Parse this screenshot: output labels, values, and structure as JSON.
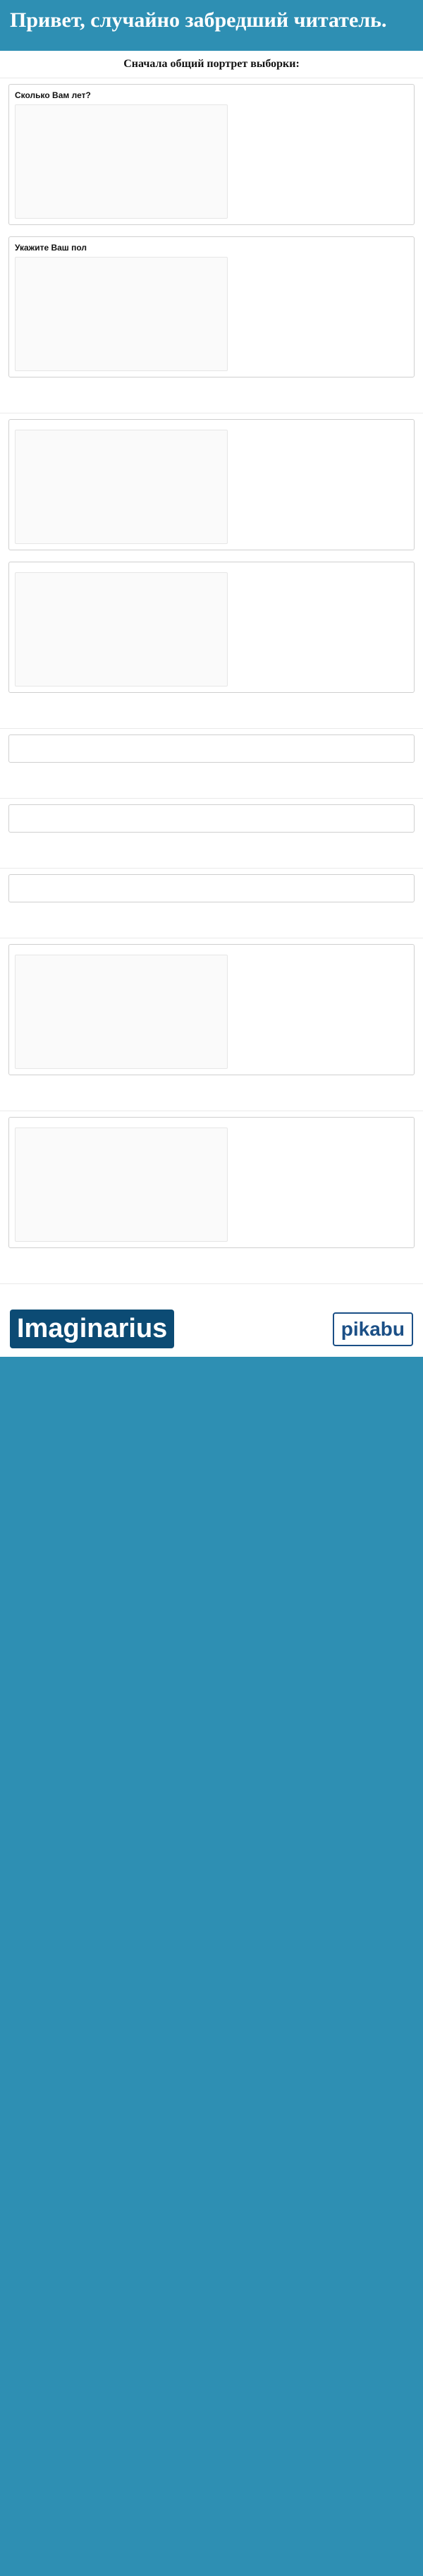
{
  "hero": {
    "title": "Привет, случайно забредший читатель.",
    "intro": "",
    "thanks": ""
  },
  "sections": {
    "s1": {
      "heading": "Сначала общий портрет выборки:",
      "age_panel_title": "Сколько Вам лет?",
      "gender_panel_title": "Укажите Ваш пол",
      "comment": ""
    },
    "s2": {
      "heading": "",
      "music_importance_title": "",
      "hours_title": "",
      "comment": ""
    },
    "s3": {
      "heading": "",
      "genres_title": "",
      "comment": ""
    },
    "s4": {
      "heading": "",
      "countries_title": "",
      "comment": ""
    },
    "s5": {
      "heading": "",
      "decades_title": "",
      "comment": ""
    },
    "s6": {
      "heading": "",
      "instrument_title": "",
      "comment": ""
    },
    "s7": {
      "heading": "",
      "influence_title": "",
      "comment": ""
    },
    "s8": {
      "heading": "",
      "text": ""
    }
  },
  "footer": {
    "question": "",
    "body": "",
    "closing": "",
    "brand": "Imaginarius",
    "brand2": "pikabu"
  },
  "colors": {
    "bg": "#2e8fb3",
    "brand_dark": "#0c4b74",
    "bar_default": "#8a8a8a",
    "bar_highlight": "#f0c400",
    "bar_blue": "#1f5f8b"
  },
  "charts": {
    "age": {
      "type": "pie",
      "legend": []
    },
    "gender": {
      "type": "pie",
      "legend": []
    },
    "music_importance": {
      "type": "pie",
      "legend": []
    },
    "hours": {
      "type": "pie",
      "legend": []
    },
    "genres": {
      "type": "bar",
      "categories": [],
      "values": [],
      "highlight": []
    },
    "countries": {
      "type": "bar",
      "categories": [],
      "values": []
    },
    "decades": {
      "type": "bar",
      "categories": [],
      "values": []
    },
    "instrument": {
      "type": "pie",
      "legend": []
    },
    "influence": {
      "type": "pie",
      "legend": []
    }
  }
}
